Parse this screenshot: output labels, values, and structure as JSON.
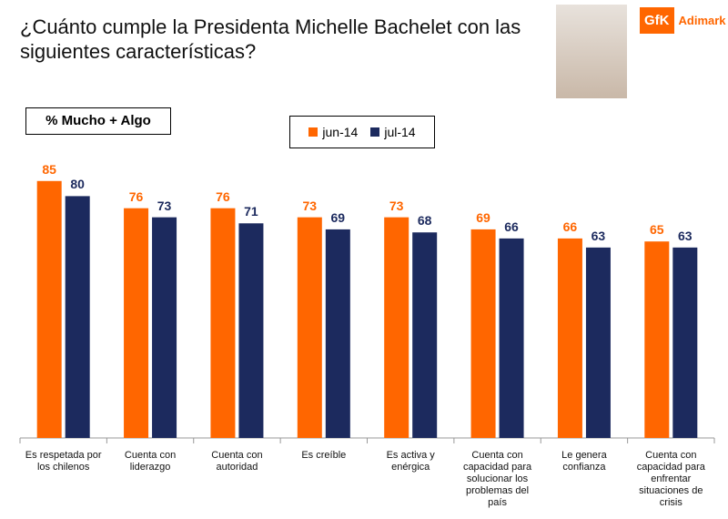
{
  "chart_data": {
    "type": "bar",
    "title": "¿Cuánto cumple la Presidenta Michelle Bachelet con las siguientes características?",
    "subtitle": "% Mucho + Algo",
    "logo": {
      "brand": "GfK",
      "name": "Adimark"
    },
    "categories": [
      "Es respetada por los chilenos",
      "Cuenta con liderazgo",
      "Cuenta con autoridad",
      "Es creíble",
      "Es activa y enérgica",
      "Cuenta con capacidad para solucionar los problemas del país",
      "Le genera confianza",
      "Cuenta con capacidad para enfrentar situaciones de crisis"
    ],
    "series": [
      {
        "name": "jun-14",
        "color": "#ff6600",
        "values": [
          85,
          76,
          76,
          73,
          73,
          69,
          66,
          65
        ]
      },
      {
        "name": "jul-14",
        "color": "#1c2a5e",
        "values": [
          80,
          73,
          71,
          69,
          68,
          66,
          63,
          63
        ]
      }
    ],
    "ylim": [
      0,
      100
    ]
  }
}
